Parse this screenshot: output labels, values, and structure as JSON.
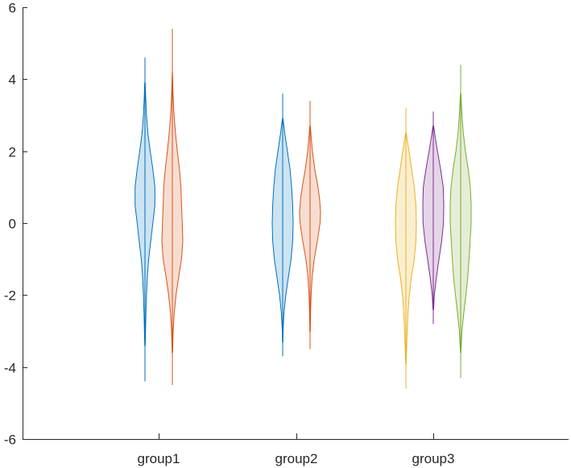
{
  "chart_data": {
    "type": "violin",
    "title": "",
    "xlabel": "",
    "ylabel": "",
    "ylim": [
      -6,
      6
    ],
    "yticks": [
      -6,
      -4,
      -2,
      0,
      2,
      4,
      6
    ],
    "ytick_labels": [
      "-6",
      "-4",
      "-2",
      "0",
      "2",
      "4",
      "6"
    ],
    "categories": [
      "group1",
      "group2",
      "group3"
    ],
    "grid": false,
    "legend": "none",
    "violins": [
      {
        "group": "group1",
        "color": "#0072BD",
        "min": -4.4,
        "max": 4.6,
        "upper_bound": 3.9,
        "lower_bound": -3.4,
        "profile": [
          [
            -3.4,
            0.02
          ],
          [
            -3.0,
            0.05
          ],
          [
            -2.5,
            0.09
          ],
          [
            -2.0,
            0.15
          ],
          [
            -1.5,
            0.22
          ],
          [
            -1.0,
            0.35
          ],
          [
            -0.5,
            0.55
          ],
          [
            0.0,
            0.75
          ],
          [
            0.5,
            0.95
          ],
          [
            1.0,
            0.95
          ],
          [
            1.5,
            0.75
          ],
          [
            2.0,
            0.5
          ],
          [
            2.5,
            0.28
          ],
          [
            3.0,
            0.15
          ],
          [
            3.5,
            0.07
          ],
          [
            3.9,
            0.02
          ]
        ]
      },
      {
        "group": "group1",
        "color": "#D95319",
        "min": -4.5,
        "max": 5.4,
        "upper_bound": 4.2,
        "lower_bound": -3.6,
        "profile": [
          [
            -3.6,
            0.02
          ],
          [
            -3.0,
            0.08
          ],
          [
            -2.5,
            0.18
          ],
          [
            -2.0,
            0.35
          ],
          [
            -1.5,
            0.6
          ],
          [
            -1.0,
            0.88
          ],
          [
            -0.5,
            1.0
          ],
          [
            0.0,
            0.95
          ],
          [
            0.5,
            0.88
          ],
          [
            1.0,
            0.82
          ],
          [
            1.5,
            0.68
          ],
          [
            2.0,
            0.48
          ],
          [
            2.5,
            0.3
          ],
          [
            3.0,
            0.16
          ],
          [
            3.5,
            0.08
          ],
          [
            4.0,
            0.03
          ],
          [
            4.2,
            0.01
          ]
        ]
      },
      {
        "group": "group2",
        "color": "#0072BD",
        "min": -3.7,
        "max": 3.6,
        "upper_bound": 2.9,
        "lower_bound": -3.3,
        "profile": [
          [
            -3.3,
            0.02
          ],
          [
            -3.0,
            0.04
          ],
          [
            -2.5,
            0.12
          ],
          [
            -2.0,
            0.3
          ],
          [
            -1.5,
            0.55
          ],
          [
            -1.0,
            0.8
          ],
          [
            -0.5,
            0.95
          ],
          [
            0.0,
            1.0
          ],
          [
            0.5,
            0.95
          ],
          [
            1.0,
            0.85
          ],
          [
            1.5,
            0.7
          ],
          [
            2.0,
            0.45
          ],
          [
            2.5,
            0.2
          ],
          [
            2.9,
            0.03
          ]
        ]
      },
      {
        "group": "group2",
        "color": "#D95319",
        "min": -3.5,
        "max": 3.4,
        "upper_bound": 2.7,
        "lower_bound": -3.0,
        "profile": [
          [
            -3.0,
            0.02
          ],
          [
            -2.5,
            0.05
          ],
          [
            -2.0,
            0.1
          ],
          [
            -1.5,
            0.2
          ],
          [
            -1.0,
            0.4
          ],
          [
            -0.5,
            0.7
          ],
          [
            0.0,
            0.95
          ],
          [
            0.3,
            1.0
          ],
          [
            0.7,
            0.9
          ],
          [
            1.0,
            0.75
          ],
          [
            1.5,
            0.45
          ],
          [
            2.0,
            0.22
          ],
          [
            2.5,
            0.08
          ],
          [
            2.7,
            0.02
          ]
        ]
      },
      {
        "group": "group3",
        "color": "#EDB120",
        "min": -4.6,
        "max": 3.2,
        "upper_bound": 2.5,
        "lower_bound": -3.9,
        "profile": [
          [
            -3.9,
            0.02
          ],
          [
            -3.5,
            0.06
          ],
          [
            -3.0,
            0.12
          ],
          [
            -2.5,
            0.2
          ],
          [
            -2.0,
            0.32
          ],
          [
            -1.5,
            0.52
          ],
          [
            -1.0,
            0.8
          ],
          [
            -0.5,
            0.95
          ],
          [
            0.0,
            1.0
          ],
          [
            0.5,
            0.95
          ],
          [
            1.0,
            0.8
          ],
          [
            1.5,
            0.55
          ],
          [
            2.0,
            0.3
          ],
          [
            2.5,
            0.02
          ]
        ]
      },
      {
        "group": "group3",
        "color": "#7E2F8E",
        "min": -2.8,
        "max": 3.1,
        "upper_bound": 2.7,
        "lower_bound": -2.4,
        "profile": [
          [
            -2.4,
            0.03
          ],
          [
            -2.0,
            0.1
          ],
          [
            -1.5,
            0.3
          ],
          [
            -1.0,
            0.55
          ],
          [
            -0.5,
            0.8
          ],
          [
            0.0,
            0.98
          ],
          [
            0.5,
            1.0
          ],
          [
            1.0,
            0.95
          ],
          [
            1.5,
            0.7
          ],
          [
            2.0,
            0.4
          ],
          [
            2.5,
            0.12
          ],
          [
            2.7,
            0.03
          ]
        ]
      },
      {
        "group": "group3",
        "color": "#77AC30",
        "min": -4.3,
        "max": 4.4,
        "upper_bound": 3.6,
        "lower_bound": -3.6,
        "profile": [
          [
            -3.6,
            0.02
          ],
          [
            -3.0,
            0.12
          ],
          [
            -2.5,
            0.3
          ],
          [
            -2.0,
            0.5
          ],
          [
            -1.5,
            0.68
          ],
          [
            -1.0,
            0.8
          ],
          [
            -0.5,
            0.9
          ],
          [
            0.0,
            1.0
          ],
          [
            0.5,
            1.0
          ],
          [
            1.0,
            0.92
          ],
          [
            1.5,
            0.72
          ],
          [
            2.0,
            0.45
          ],
          [
            2.5,
            0.25
          ],
          [
            3.0,
            0.12
          ],
          [
            3.6,
            0.02
          ]
        ]
      }
    ]
  }
}
